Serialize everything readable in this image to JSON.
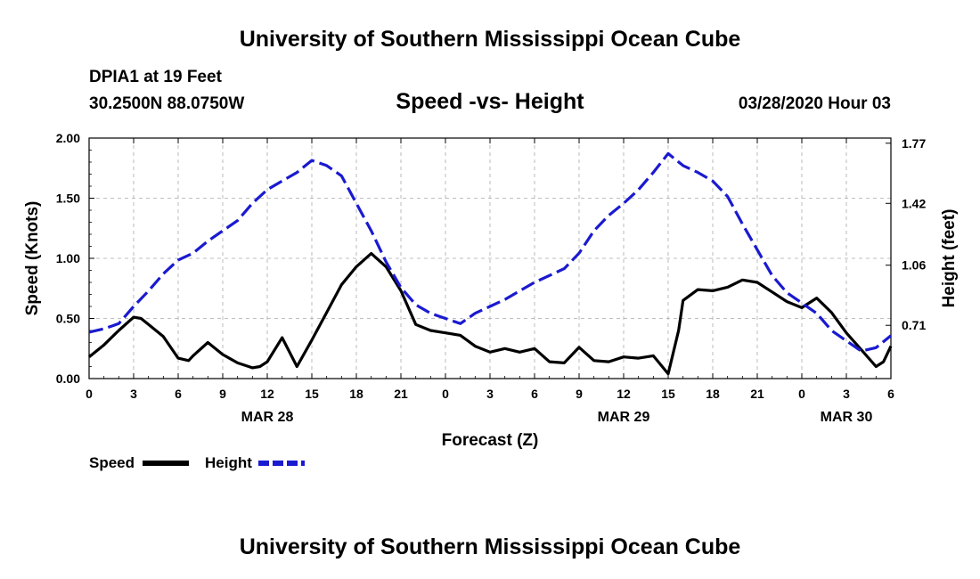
{
  "page": {
    "title_top": "University of Southern Mississippi Ocean Cube",
    "title_bottom": "University of Southern Mississippi Ocean Cube",
    "station": "DPIA1 at 19 Feet",
    "location": "30.2500N 88.0750W",
    "subtitle": "Speed -vs- Height",
    "datetime": "03/28/2020 Hour 03"
  },
  "chart_data": {
    "type": "line",
    "title": "Speed -vs- Height",
    "xlabel": "Forecast (Z)",
    "ylabel": "Speed (Knots)",
    "y2label": "Height (feet)",
    "xlim": [
      0,
      54
    ],
    "ylim": [
      0,
      2
    ],
    "y2lim": [
      0.4,
      1.8
    ],
    "x_ticks": [
      0,
      3,
      6,
      9,
      12,
      15,
      18,
      21,
      24,
      27,
      30,
      33,
      36,
      39,
      42,
      45,
      48,
      51,
      54
    ],
    "x_tick_labels": [
      "0",
      "3",
      "6",
      "9",
      "12",
      "15",
      "18",
      "21",
      "0",
      "3",
      "6",
      "9",
      "12",
      "15",
      "18",
      "21",
      "0",
      "3",
      "6"
    ],
    "date_labels": [
      {
        "x": 12,
        "label": "MAR 28"
      },
      {
        "x": 36,
        "label": "MAR 29"
      },
      {
        "x": 51,
        "label": "MAR 30"
      }
    ],
    "y_ticks": [
      0,
      0.5,
      1,
      1.5,
      2
    ],
    "y_tick_labels": [
      "0.00",
      "0.50",
      "1.00",
      "1.50",
      "2.00"
    ],
    "y2_ticks": [
      0.71,
      1.06,
      1.42,
      1.77
    ],
    "y2_tick_labels": [
      "0.71",
      "1.06",
      "1.42",
      "1.77"
    ],
    "series": [
      {
        "name": "Speed",
        "axis": "left",
        "color": "#000000",
        "dash": "solid",
        "x": [
          0,
          1,
          2,
          3,
          3.5,
          4,
          5,
          6,
          6.7,
          7,
          8,
          9,
          10,
          11,
          11.5,
          12,
          13,
          14,
          15,
          16,
          17,
          18,
          19,
          20,
          21,
          22,
          23,
          24,
          25,
          26,
          27,
          28,
          29,
          30,
          31,
          32,
          33,
          34,
          35,
          36,
          37,
          38,
          39,
          39.7,
          40,
          41,
          42,
          43,
          44,
          45,
          46,
          47,
          48,
          49,
          50,
          51,
          52,
          53,
          53.5,
          54
        ],
        "values": [
          0.18,
          0.28,
          0.4,
          0.51,
          0.5,
          0.45,
          0.35,
          0.17,
          0.15,
          0.19,
          0.3,
          0.2,
          0.13,
          0.09,
          0.1,
          0.14,
          0.34,
          0.1,
          0.32,
          0.55,
          0.78,
          0.93,
          1.04,
          0.93,
          0.73,
          0.45,
          0.4,
          0.38,
          0.36,
          0.27,
          0.22,
          0.25,
          0.22,
          0.25,
          0.14,
          0.13,
          0.26,
          0.15,
          0.14,
          0.18,
          0.17,
          0.19,
          0.04,
          0.4,
          0.65,
          0.74,
          0.73,
          0.76,
          0.82,
          0.8,
          0.72,
          0.64,
          0.59,
          0.67,
          0.55,
          0.38,
          0.24,
          0.1,
          0.14,
          0.27
        ]
      },
      {
        "name": "Height",
        "axis": "right",
        "color": "#1a1ad0",
        "dash": "dashed",
        "x": [
          0,
          1,
          2,
          3,
          4,
          5,
          6,
          7,
          8,
          9,
          10,
          11,
          12,
          13,
          14,
          15,
          16,
          17,
          18,
          19,
          20,
          21,
          22,
          23,
          24,
          25,
          26,
          27,
          28,
          29,
          30,
          31,
          32,
          33,
          34,
          35,
          36,
          37,
          38,
          39,
          40,
          41,
          42,
          43,
          44,
          45,
          46,
          47,
          48,
          49,
          50,
          51,
          52,
          53,
          54
        ],
        "values": [
          0.67,
          0.69,
          0.72,
          0.82,
          0.91,
          1.01,
          1.09,
          1.13,
          1.2,
          1.26,
          1.32,
          1.42,
          1.5,
          1.55,
          1.6,
          1.67,
          1.64,
          1.58,
          1.42,
          1.26,
          1.08,
          0.93,
          0.83,
          0.78,
          0.75,
          0.72,
          0.78,
          0.82,
          0.86,
          0.91,
          0.96,
          1.0,
          1.04,
          1.13,
          1.26,
          1.35,
          1.42,
          1.5,
          1.6,
          1.71,
          1.64,
          1.6,
          1.55,
          1.46,
          1.3,
          1.15,
          1.0,
          0.9,
          0.84,
          0.78,
          0.68,
          0.62,
          0.56,
          0.58,
          0.65
        ]
      }
    ],
    "legend": [
      {
        "label": "Speed",
        "color": "#000000",
        "dash": "solid"
      },
      {
        "label": "Height",
        "color": "#1a1ad0",
        "dash": "dashed"
      }
    ],
    "grid": true
  }
}
